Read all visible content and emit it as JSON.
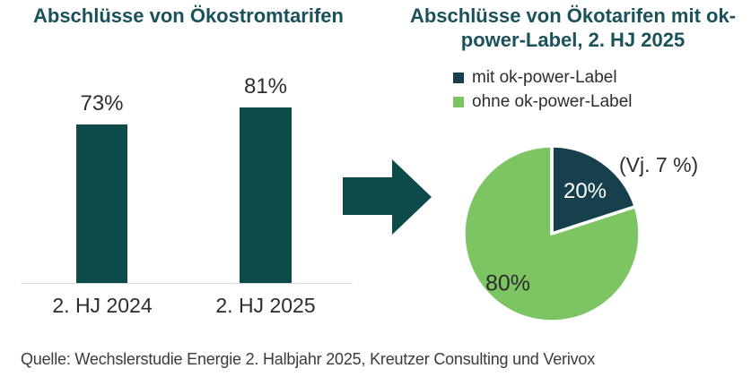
{
  "colors": {
    "title": "#1a515a",
    "bar": "#0d4a4a",
    "arrow": "#0d4a4a",
    "pie_dark": "#15404c",
    "pie_green": "#7dc463",
    "text": "#2d2d2d",
    "axis_line": "#dcdcdc",
    "pie_label_light": "#ffffff",
    "source_text": "#3b3b3b"
  },
  "right_chart": {
    "title_line1": "Abschlüsse von Ökotarifen mit ok-",
    "title_line2": "power-Label, 2. HJ 2025"
  },
  "source": {
    "text": "Quelle: Wechslerstudie Energie 2. Halbjahr 2025, Kreutzer Consulting und Verivox"
  },
  "chart_data": [
    {
      "type": "bar",
      "title": "Abschlüsse von Ökostromtarifen",
      "categories": [
        "2. HJ 2024",
        "2. HJ 2025"
      ],
      "values": [
        73,
        81
      ],
      "data_labels": [
        "73%",
        "81%"
      ],
      "unit": "%",
      "ylim": [
        0,
        100
      ],
      "grid": false,
      "axis_line_visible": true,
      "bar_color": "#0d4a4a"
    },
    {
      "type": "pie",
      "title": "Abschlüsse von Ökotarifen mit ok-power-Label, 2. HJ 2025",
      "labels": [
        "mit ok-power-Label",
        "ohne ok-power-Label"
      ],
      "values": [
        20,
        80
      ],
      "data_labels": [
        "20%",
        "80%"
      ],
      "colors": [
        "#15404c",
        "#7dc463"
      ],
      "annotation": "(Vj. 7 %)",
      "start_angle": "top",
      "direction": "clockwise",
      "legend_position": "top"
    }
  ]
}
